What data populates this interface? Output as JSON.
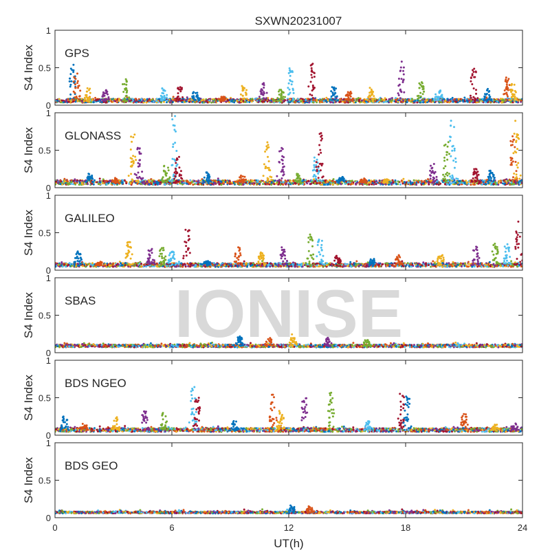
{
  "figure": {
    "title": "SXWN20231007",
    "watermark": "IONISE"
  },
  "chart_data": {
    "type": "scatter",
    "xlabel": "UT(h)",
    "xlim": [
      0,
      24
    ],
    "x_ticks": [
      0,
      6,
      12,
      18,
      24
    ],
    "ylabel": "S4 Index",
    "ylim": [
      0,
      1
    ],
    "y_ticks": [
      0,
      0.5,
      1
    ],
    "y_tick_labels": [
      "0",
      "0.5",
      "1"
    ],
    "grid": false,
    "series_colors": [
      "#0072BD",
      "#D95319",
      "#EDB120",
      "#7E2F8E",
      "#77AC30",
      "#4DBEEE",
      "#A2142F"
    ],
    "panels": [
      {
        "label": "GPS",
        "baseline": 0.06,
        "noise": 0.025,
        "peaks": [
          [
            0.9,
            0.55
          ],
          [
            1.1,
            0.5
          ],
          [
            1.7,
            0.25
          ],
          [
            2.6,
            0.2
          ],
          [
            3.6,
            0.35
          ],
          [
            5.6,
            0.22
          ],
          [
            6.4,
            0.28
          ],
          [
            7.2,
            0.18
          ],
          [
            8.6,
            0.12
          ],
          [
            9.7,
            0.25
          ],
          [
            10.7,
            0.32
          ],
          [
            11.6,
            0.22
          ],
          [
            12.1,
            0.5
          ],
          [
            13.2,
            0.58
          ],
          [
            14.3,
            0.24
          ],
          [
            15.1,
            0.18
          ],
          [
            16.2,
            0.22
          ],
          [
            17.8,
            0.58
          ],
          [
            18.8,
            0.3
          ],
          [
            19.7,
            0.22
          ],
          [
            21.5,
            0.5
          ],
          [
            22.2,
            0.22
          ],
          [
            23.2,
            0.38
          ],
          [
            23.5,
            0.28
          ]
        ]
      },
      {
        "label": "GLONASS",
        "baseline": 0.07,
        "noise": 0.03,
        "peaks": [
          [
            1.8,
            0.2
          ],
          [
            3.1,
            0.12
          ],
          [
            4.0,
            0.7
          ],
          [
            4.3,
            0.55
          ],
          [
            5.7,
            0.3
          ],
          [
            6.1,
            0.95
          ],
          [
            6.3,
            0.42
          ],
          [
            7.8,
            0.2
          ],
          [
            9.6,
            0.18
          ],
          [
            10.9,
            0.62
          ],
          [
            11.6,
            0.55
          ],
          [
            12.5,
            0.2
          ],
          [
            13.4,
            0.4
          ],
          [
            13.6,
            0.75
          ],
          [
            14.7,
            0.14
          ],
          [
            15.8,
            0.12
          ],
          [
            17.0,
            0.1
          ],
          [
            19.4,
            0.32
          ],
          [
            20.1,
            0.62
          ],
          [
            20.4,
            0.92
          ],
          [
            21.6,
            0.24
          ],
          [
            22.4,
            0.24
          ],
          [
            23.5,
            0.7
          ],
          [
            23.7,
            0.92
          ]
        ]
      },
      {
        "label": "GALILEO",
        "baseline": 0.07,
        "noise": 0.025,
        "peaks": [
          [
            1.2,
            0.24
          ],
          [
            2.3,
            0.1
          ],
          [
            3.8,
            0.38
          ],
          [
            4.9,
            0.28
          ],
          [
            5.5,
            0.3
          ],
          [
            6.0,
            0.25
          ],
          [
            6.8,
            0.58
          ],
          [
            7.8,
            0.12
          ],
          [
            9.4,
            0.3
          ],
          [
            10.6,
            0.24
          ],
          [
            11.7,
            0.3
          ],
          [
            13.1,
            0.48
          ],
          [
            13.6,
            0.42
          ],
          [
            14.5,
            0.2
          ],
          [
            16.3,
            0.15
          ],
          [
            17.6,
            0.2
          ],
          [
            19.8,
            0.22
          ],
          [
            21.6,
            0.32
          ],
          [
            22.6,
            0.38
          ],
          [
            23.2,
            0.34
          ],
          [
            23.8,
            0.65
          ]
        ]
      },
      {
        "label": "SBAS",
        "baseline": 0.09,
        "noise": 0.018,
        "peaks": [
          [
            9.5,
            0.22
          ],
          [
            11.0,
            0.2
          ],
          [
            12.2,
            0.24
          ],
          [
            14.0,
            0.2
          ],
          [
            16.0,
            0.18
          ]
        ]
      },
      {
        "label": "BDS NGEO",
        "baseline": 0.07,
        "noise": 0.025,
        "peaks": [
          [
            0.5,
            0.25
          ],
          [
            1.5,
            0.14
          ],
          [
            3.1,
            0.24
          ],
          [
            4.6,
            0.32
          ],
          [
            5.6,
            0.3
          ],
          [
            7.1,
            0.65
          ],
          [
            7.3,
            0.55
          ],
          [
            9.2,
            0.18
          ],
          [
            11.2,
            0.6
          ],
          [
            11.6,
            0.32
          ],
          [
            12.8,
            0.52
          ],
          [
            14.2,
            0.62
          ],
          [
            16.1,
            0.2
          ],
          [
            17.8,
            0.62
          ],
          [
            18.1,
            0.52
          ],
          [
            21.0,
            0.28
          ],
          [
            22.6,
            0.14
          ],
          [
            23.6,
            0.15
          ]
        ]
      },
      {
        "label": "BDS GEO",
        "baseline": 0.07,
        "noise": 0.012,
        "peaks": [
          [
            12.2,
            0.16
          ],
          [
            13.1,
            0.14
          ]
        ]
      }
    ]
  }
}
